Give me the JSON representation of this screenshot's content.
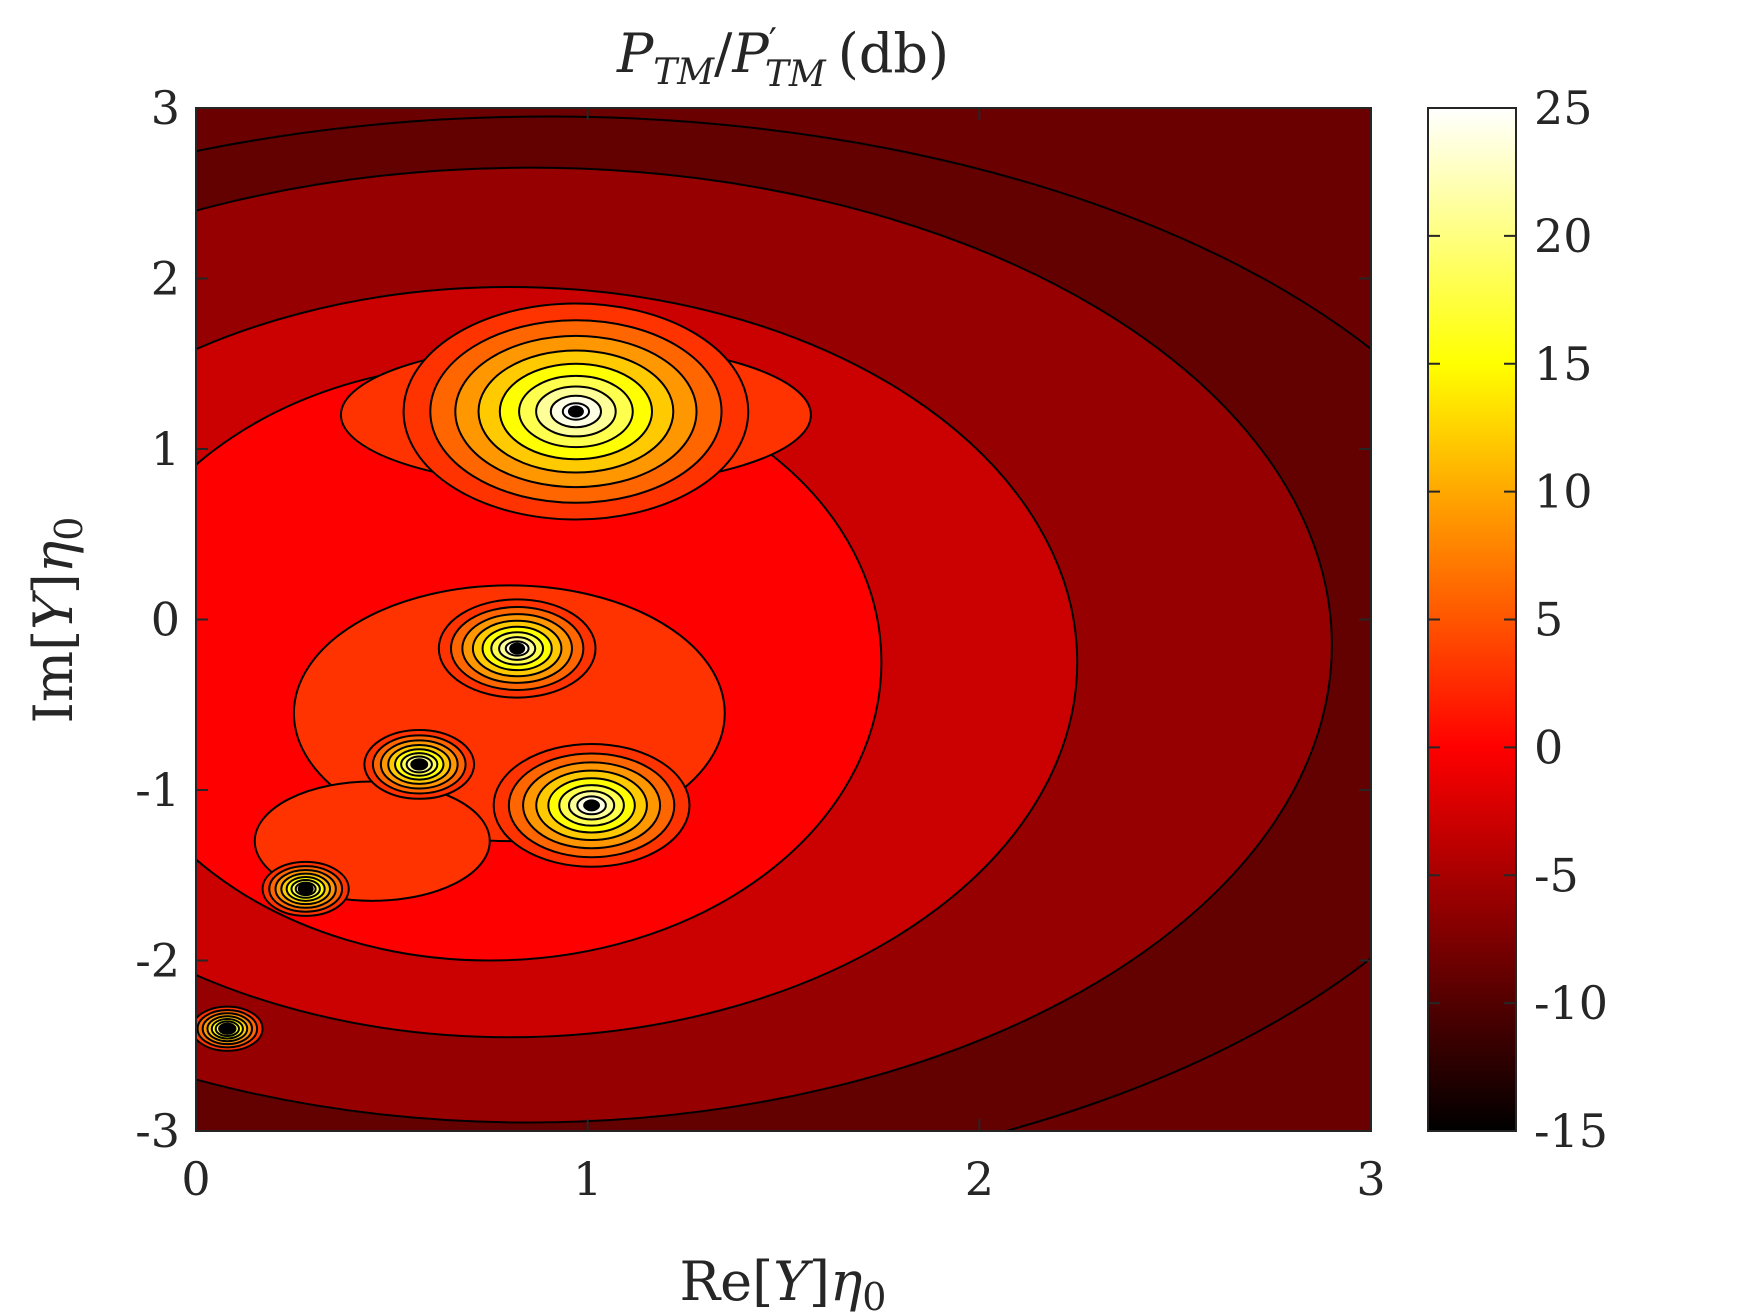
{
  "chart_data": {
    "type": "heatmap",
    "subtype": "filled-contour",
    "title": {
      "P": "P",
      "sub": "TM",
      "slash": "/",
      "prime": "′",
      "unit": "(db)"
    },
    "xlabel": {
      "prefix": "Re[",
      "var": "Y",
      "close": "]",
      "eta": "η",
      "eta_sub": "0"
    },
    "ylabel": {
      "prefix": "Im[",
      "var": "Y",
      "close": "]",
      "eta": "η",
      "eta_sub": "0"
    },
    "xlim": [
      0,
      3
    ],
    "ylim": [
      -3,
      3
    ],
    "xticks": [
      0,
      1,
      2,
      3
    ],
    "xtick_labels": [
      "0",
      "1",
      "2",
      "3"
    ],
    "yticks": [
      3,
      2,
      1,
      0,
      -1,
      -2,
      -3
    ],
    "ytick_labels": [
      "3",
      "2",
      "1",
      "0",
      "-1",
      "-2",
      "-3"
    ],
    "colorbar": {
      "limits": [
        -15,
        25
      ],
      "ticks": [
        25,
        20,
        15,
        10,
        5,
        0,
        -5,
        -10,
        -15
      ],
      "tick_labels": [
        "25",
        "20",
        "15",
        "10",
        "5",
        "0",
        "-5",
        "-10",
        "-15"
      ],
      "colormap": "hot",
      "colors": [
        "#000000",
        "#520000",
        "#a80000",
        "#ff0000",
        "#ff5500",
        "#ffa800",
        "#ffff00",
        "#ffff80",
        "#ffffff"
      ]
    },
    "contour_step_db": 3,
    "grid": false,
    "peaks": [
      {
        "x": 0.97,
        "y": 1.22,
        "label": "peak-1"
      },
      {
        "x": 0.82,
        "y": -0.17,
        "label": "peak-2"
      },
      {
        "x": 1.01,
        "y": -1.09,
        "label": "peak-3"
      },
      {
        "x": 0.57,
        "y": -0.85,
        "label": "peak-4"
      },
      {
        "x": 0.28,
        "y": -1.58,
        "label": "peak-5"
      },
      {
        "x": 0.08,
        "y": -2.4,
        "label": "peak-6"
      }
    ]
  }
}
